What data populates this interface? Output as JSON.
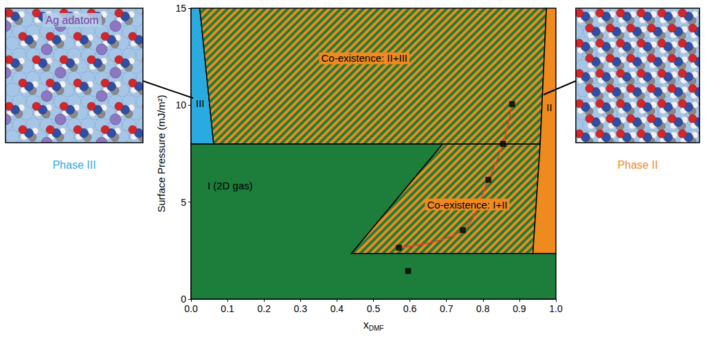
{
  "chart_data": {
    "type": "scatter",
    "xlabel": {
      "text": "x",
      "subscript": "DMF"
    },
    "ylabel": "Surface Pressure (mJ/m²)",
    "xlim": [
      0,
      1
    ],
    "xticks": [
      {
        "value": 0,
        "label": "0.0"
      },
      0.1,
      0.2,
      0.3,
      0.4,
      0.5,
      0.6,
      0.7,
      0.8,
      0.9,
      {
        "value": 1,
        "label": "1.0"
      }
    ],
    "ylim": [
      0,
      15
    ],
    "yticks": [
      0,
      5,
      10,
      15
    ],
    "grid": false,
    "regions": [
      {
        "label": "I (2D gas)",
        "color": "#1d7d3b",
        "label_at": [
          0.107,
          5.87
        ],
        "polygon": [
          [
            0,
            0
          ],
          [
            1,
            0
          ],
          [
            1,
            2.35
          ],
          [
            0.44,
            2.35
          ],
          [
            0.69,
            8
          ],
          [
            0,
            8
          ]
        ]
      },
      {
        "label": "Co-existence: I+II",
        "colors": [
          "#ef8a1e",
          "#1d7d3b"
        ],
        "label_at": [
          0.757,
          4.88
        ],
        "polygon": [
          [
            0.44,
            2.35
          ],
          [
            0.937,
            2.35
          ],
          [
            0.957,
            8
          ],
          [
            0.69,
            8
          ]
        ]
      },
      {
        "label": "III",
        "color": "#29abe2",
        "label_at": [
          0.025,
          10.1
        ],
        "polygon": [
          [
            0,
            8
          ],
          [
            0.062,
            8
          ],
          [
            0.024,
            15
          ],
          [
            0,
            15
          ]
        ]
      },
      {
        "label": "Co-existence: II+III",
        "colors": [
          "#ef8a1e",
          "#1d7d3b"
        ],
        "label_at": [
          0.475,
          12.42
        ],
        "polygon": [
          [
            0.062,
            8
          ],
          [
            0.957,
            8
          ],
          [
            0.974,
            15
          ],
          [
            0.024,
            15
          ]
        ]
      },
      {
        "label": "II",
        "color": "#ef8a1e",
        "label_at": [
          0.982,
          9.9
        ],
        "polygon": [
          [
            0.937,
            2.35
          ],
          [
            1,
            2.35
          ],
          [
            1,
            15
          ],
          [
            0.974,
            15
          ],
          [
            0.957,
            8
          ]
        ]
      }
    ],
    "series": [
      {
        "type": "line",
        "color": "#e8402c",
        "line_style": "solid",
        "x": [
          0.57,
          0.745,
          0.815,
          0.855,
          0.88
        ],
        "values": [
          2.65,
          3.55,
          6.15,
          8.0,
          10.05
        ]
      },
      {
        "type": "scatter",
        "color": "#000000",
        "marker": "square",
        "x": [
          0.57,
          0.745,
          0.815,
          0.855,
          0.88,
          0.595
        ],
        "values": [
          2.65,
          3.55,
          6.15,
          8.0,
          10.05,
          1.45
        ]
      }
    ],
    "insets": [
      {
        "label": "Phase III",
        "color": "#29abe2",
        "annotation": "Ag adatom",
        "annotation_color": "#7b3fa0"
      },
      {
        "label": "Phase II",
        "color": "#ef8a1e"
      }
    ]
  }
}
